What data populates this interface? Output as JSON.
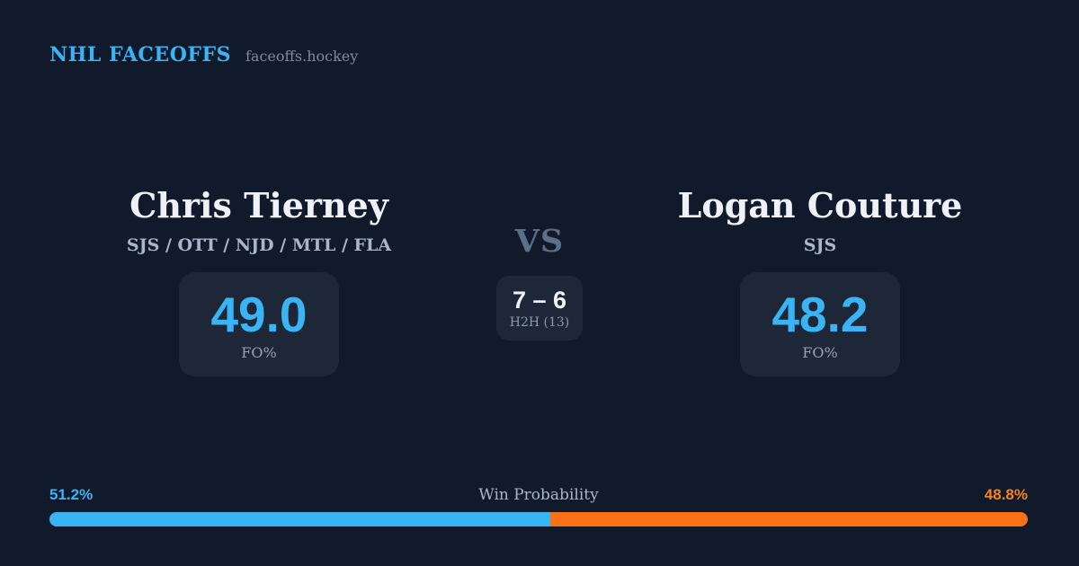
{
  "header": {
    "brand": "NHL FACEOFFS",
    "site": "faceoffs.hockey"
  },
  "players": {
    "left": {
      "name": "Chris Tierney",
      "teams": "SJS / OTT / NJD / MTL / FLA",
      "stat_value": "49.0",
      "stat_label": "FO%"
    },
    "right": {
      "name": "Logan Couture",
      "teams": "SJS",
      "stat_value": "48.2",
      "stat_label": "FO%"
    }
  },
  "matchup": {
    "vs_label": "VS",
    "h2h_score": "7 – 6",
    "h2h_label": "H2H (13)"
  },
  "win_probability": {
    "title": "Win Probability",
    "left_label": "51.2%",
    "right_label": "48.8%",
    "left_pct": 51.2,
    "right_pct": 48.8
  },
  "colors": {
    "background": "#111a2b",
    "card": "#1d2737",
    "blue": "#3ab4f5",
    "orange": "#f97316",
    "orange_text": "#f5831d",
    "white": "#eef2f8",
    "muted": "#a9b6c9",
    "vs": "#5d6e89",
    "stat_label": "#97a3b4",
    "h2h_label": "#8b99ad",
    "site": "#7e8a9a"
  }
}
